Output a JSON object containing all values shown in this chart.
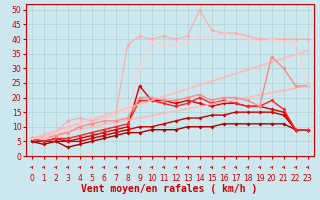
{
  "xlabel": "Vent moyen/en rafales ( km/h )",
  "xlim_min": -0.5,
  "xlim_max": 23.5,
  "ylim_min": 0,
  "ylim_max": 52,
  "yticks": [
    0,
    5,
    10,
    15,
    20,
    25,
    30,
    35,
    40,
    45,
    50
  ],
  "xticks": [
    0,
    1,
    2,
    3,
    4,
    5,
    6,
    7,
    8,
    9,
    10,
    11,
    12,
    13,
    14,
    15,
    16,
    17,
    18,
    19,
    20,
    21,
    22,
    23
  ],
  "bg_color": "#cce8ee",
  "grid_color": "#aacccc",
  "red_dark": "#cc0000",
  "red_mid": "#ff2222",
  "red_light": "#ff9999",
  "red_vlight": "#ffbbbb",
  "lines": [
    {
      "x": [
        0,
        1,
        2,
        3,
        4,
        5,
        6,
        7,
        8,
        9,
        10,
        11,
        12,
        13,
        14,
        15,
        16,
        17,
        18,
        19,
        20,
        21,
        22,
        23
      ],
      "y": [
        5,
        4,
        5,
        3,
        4,
        5,
        6,
        7,
        8,
        8,
        9,
        9,
        9,
        10,
        10,
        10,
        11,
        11,
        11,
        11,
        11,
        11,
        9,
        9
      ],
      "color": "#aa0000",
      "lw": 1.0,
      "marker": "D",
      "ms": 2.0
    },
    {
      "x": [
        0,
        1,
        2,
        3,
        4,
        5,
        6,
        7,
        8,
        9,
        10,
        11,
        12,
        13,
        14,
        15,
        16,
        17,
        18,
        19,
        20,
        21,
        22,
        23
      ],
      "y": [
        5,
        5,
        5,
        5,
        5,
        6,
        7,
        8,
        9,
        10,
        10,
        11,
        12,
        13,
        13,
        14,
        14,
        15,
        15,
        15,
        15,
        14,
        9,
        9
      ],
      "color": "#cc0000",
      "lw": 1.0,
      "marker": "D",
      "ms": 2.0
    },
    {
      "x": [
        0,
        1,
        2,
        3,
        4,
        5,
        6,
        7,
        8,
        9,
        10,
        11,
        12,
        13,
        14,
        15,
        16,
        17,
        18,
        19,
        20,
        21,
        22,
        23
      ],
      "y": [
        6,
        5,
        6,
        5,
        6,
        7,
        8,
        9,
        10,
        24,
        19,
        19,
        18,
        19,
        18,
        17,
        18,
        18,
        17,
        17,
        16,
        15,
        9,
        9
      ],
      "color": "#dd0000",
      "lw": 1.0,
      "marker": "D",
      "ms": 2.0
    },
    {
      "x": [
        0,
        1,
        2,
        3,
        4,
        5,
        6,
        7,
        8,
        9,
        10,
        11,
        12,
        13,
        14,
        15,
        16,
        17,
        18,
        19,
        20,
        21,
        22,
        23
      ],
      "y": [
        6,
        5,
        6,
        6,
        7,
        8,
        9,
        10,
        11,
        19,
        19,
        18,
        17,
        18,
        20,
        18,
        19,
        18,
        17,
        17,
        19,
        16,
        9,
        9
      ],
      "color": "#ff2222",
      "lw": 1.0,
      "marker": "D",
      "ms": 2.0
    },
    {
      "x": [
        0,
        23
      ],
      "y": [
        6,
        24
      ],
      "color": "#ffbbbb",
      "lw": 1.2,
      "marker": null,
      "ms": 0
    },
    {
      "x": [
        0,
        23
      ],
      "y": [
        6,
        36
      ],
      "color": "#ffbbbb",
      "lw": 1.2,
      "marker": null,
      "ms": 0
    },
    {
      "x": [
        0,
        1,
        2,
        3,
        4,
        5,
        6,
        7,
        8,
        9,
        10,
        11,
        12,
        13,
        14,
        15,
        16,
        17,
        18,
        19,
        20,
        21,
        22,
        23
      ],
      "y": [
        6,
        6,
        7,
        8,
        10,
        11,
        12,
        12,
        13,
        20,
        20,
        19,
        19,
        20,
        21,
        19,
        20,
        20,
        19,
        17,
        34,
        30,
        24,
        24
      ],
      "color": "#ff8888",
      "lw": 1.0,
      "marker": "D",
      "ms": 2.0
    },
    {
      "x": [
        0,
        1,
        2,
        3,
        4,
        5,
        6,
        7,
        8,
        9,
        10,
        11,
        12,
        13,
        14,
        15,
        16,
        17,
        18,
        19,
        20,
        21,
        22,
        23
      ],
      "y": [
        6,
        6,
        8,
        12,
        13,
        12,
        13,
        14,
        38,
        41,
        40,
        41,
        40,
        41,
        50,
        43,
        42,
        42,
        41,
        40,
        40,
        40,
        40,
        40
      ],
      "color": "#ffaaaa",
      "lw": 0.8,
      "marker": "D",
      "ms": 2.0
    },
    {
      "x": [
        0,
        1,
        2,
        3,
        4,
        5,
        6,
        7,
        8,
        9,
        10,
        11,
        12,
        13,
        14,
        15,
        16,
        17,
        18,
        19,
        20,
        21,
        22,
        23
      ],
      "y": [
        6,
        6,
        8,
        9,
        11,
        13,
        13,
        14,
        16,
        30,
        39,
        38,
        38,
        39,
        41,
        41,
        42,
        41,
        40,
        39,
        40,
        39,
        39,
        24
      ],
      "color": "#ffcccc",
      "lw": 0.8,
      "marker": "D",
      "ms": 1.5
    }
  ],
  "xlabel_fontsize": 7,
  "tick_fontsize": 5.5,
  "xlabel_color": "#cc0000",
  "arrow_color": "#cc0000"
}
